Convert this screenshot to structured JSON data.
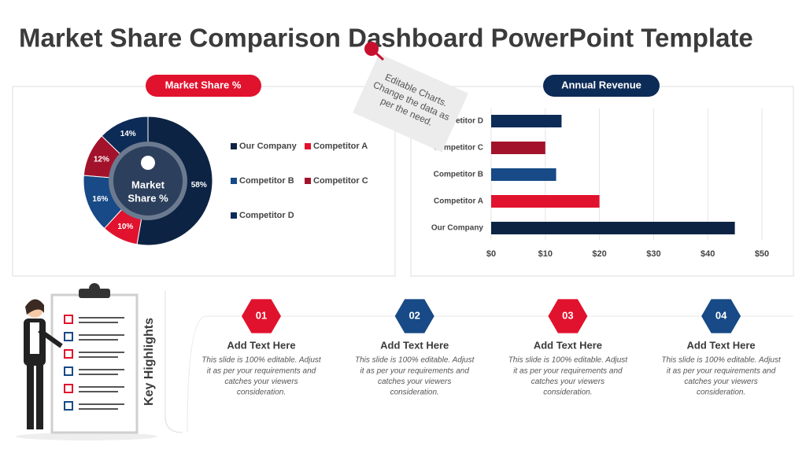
{
  "header": {
    "title": "Market Share Comparison Dashboard PowerPoint Template"
  },
  "chart_data": [
    {
      "type": "donut",
      "title": "Market Share %",
      "center_label": [
        "Market",
        "Share %"
      ],
      "categories": [
        "Our Company",
        "Competitor A",
        "Competitor B",
        "Competitor C",
        "Competitor D"
      ],
      "values": [
        58,
        10,
        16,
        12,
        14
      ],
      "value_labels": [
        "58%",
        "10%",
        "16%",
        "12%",
        "14%"
      ],
      "colors": [
        "#0c2344",
        "#e1122d",
        "#174a86",
        "#a3122b",
        "#0d2b57"
      ]
    },
    {
      "type": "hbar",
      "title": "Annual Revenue",
      "categories": [
        "Our Company",
        "Competitor A",
        "Competitor B",
        "Competitor C",
        "Competitor D"
      ],
      "values": [
        45,
        20,
        12,
        10,
        13
      ],
      "colors": [
        "#0c2344",
        "#e1122d",
        "#174a86",
        "#a3122b",
        "#0d2b57"
      ],
      "xlim": [
        0,
        50
      ],
      "xticks": [
        {
          "value": 0,
          "label": "$0"
        },
        {
          "value": 10,
          "label": "$10"
        },
        {
          "value": 20,
          "label": "$20"
        },
        {
          "value": 30,
          "label": "$30"
        },
        {
          "value": 40,
          "label": "$40"
        },
        {
          "value": 50,
          "label": "$50"
        }
      ],
      "grid": true
    }
  ],
  "note": {
    "lines": [
      "Editable Charts.",
      "Change the data as",
      "per the need."
    ]
  },
  "highlights": {
    "title": "Key Highlights",
    "items": [
      {
        "number": "01",
        "heading": "Add Text Here",
        "body": [
          "This slide is 100% editable. Adjust",
          "it as per your requirements and",
          "catches your viewers",
          "consideration."
        ]
      },
      {
        "number": "02",
        "heading": "Add Text Here",
        "body": [
          "This slide is 100% editable. Adjust",
          "it as per your requirements and",
          "catches your viewers",
          "consideration."
        ]
      },
      {
        "number": "03",
        "heading": "Add Text Here",
        "body": [
          "This slide is 100% editable. Adjust",
          "it as per your requirements and",
          "catches your viewers",
          "consideration."
        ]
      },
      {
        "number": "04",
        "heading": "Add Text Here",
        "body": [
          "This slide is 100% editable. Adjust",
          "it as per your requirements and",
          "catches your viewers",
          "consideration."
        ]
      }
    ]
  }
}
